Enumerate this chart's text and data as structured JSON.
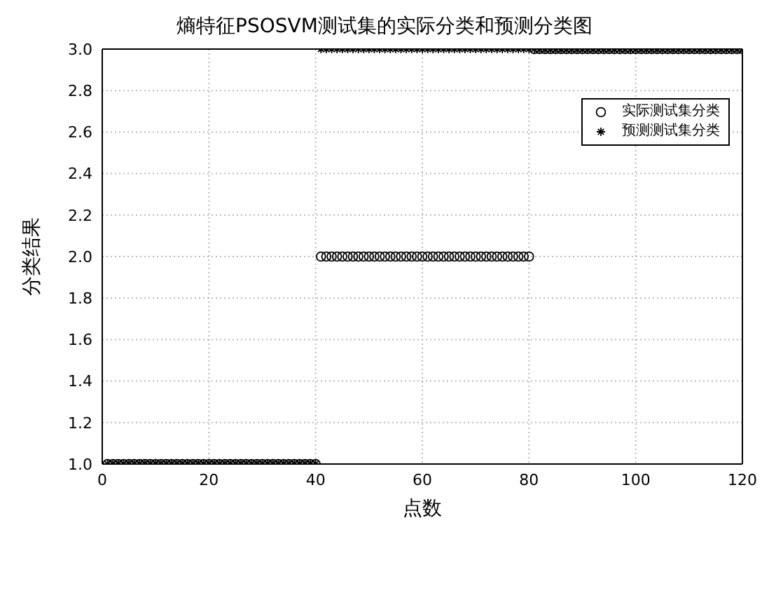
{
  "chart_data": {
    "type": "scatter",
    "title": "熵特征PSOSVM测试集的实际分类和预测分类图",
    "xlabel": "点数",
    "ylabel": "分类结果",
    "x": [
      1,
      2,
      3,
      4,
      5,
      6,
      7,
      8,
      9,
      10,
      11,
      12,
      13,
      14,
      15,
      16,
      17,
      18,
      19,
      20,
      21,
      22,
      23,
      24,
      25,
      26,
      27,
      28,
      29,
      30,
      31,
      32,
      33,
      34,
      35,
      36,
      37,
      38,
      39,
      40,
      41,
      42,
      43,
      44,
      45,
      46,
      47,
      48,
      49,
      50,
      51,
      52,
      53,
      54,
      55,
      56,
      57,
      58,
      59,
      60,
      61,
      62,
      63,
      64,
      65,
      66,
      67,
      68,
      69,
      70,
      71,
      72,
      73,
      74,
      75,
      76,
      77,
      78,
      79,
      80,
      81,
      82,
      83,
      84,
      85,
      86,
      87,
      88,
      89,
      90,
      91,
      92,
      93,
      94,
      95,
      96,
      97,
      98,
      99,
      100,
      101,
      102,
      103,
      104,
      105,
      106,
      107,
      108,
      109,
      110,
      111,
      112,
      113,
      114,
      115,
      116,
      117,
      118,
      119,
      120
    ],
    "series": [
      {
        "name": "实际测试集分类",
        "color": "#000000",
        "marker": "circle",
        "values": [
          1,
          1,
          1,
          1,
          1,
          1,
          1,
          1,
          1,
          1,
          1,
          1,
          1,
          1,
          1,
          1,
          1,
          1,
          1,
          1,
          1,
          1,
          1,
          1,
          1,
          1,
          1,
          1,
          1,
          1,
          1,
          1,
          1,
          1,
          1,
          1,
          1,
          1,
          1,
          1,
          2,
          2,
          2,
          2,
          2,
          2,
          2,
          2,
          2,
          2,
          2,
          2,
          2,
          2,
          2,
          2,
          2,
          2,
          2,
          2,
          2,
          2,
          2,
          2,
          2,
          2,
          2,
          2,
          2,
          2,
          2,
          2,
          2,
          2,
          2,
          2,
          2,
          2,
          2,
          2,
          3,
          3,
          3,
          3,
          3,
          3,
          3,
          3,
          3,
          3,
          3,
          3,
          3,
          3,
          3,
          3,
          3,
          3,
          3,
          3,
          3,
          3,
          3,
          3,
          3,
          3,
          3,
          3,
          3,
          3,
          3,
          3,
          3,
          3,
          3,
          3,
          3,
          3,
          3,
          3
        ]
      },
      {
        "name": "预测测试集分类",
        "color": "#000000",
        "marker": "cross",
        "values": [
          1,
          1,
          1,
          1,
          1,
          1,
          1,
          1,
          1,
          1,
          1,
          1,
          1,
          1,
          1,
          1,
          1,
          1,
          1,
          1,
          1,
          1,
          1,
          1,
          1,
          1,
          1,
          1,
          1,
          1,
          1,
          1,
          1,
          1,
          1,
          1,
          1,
          1,
          1,
          1,
          3,
          3,
          3,
          3,
          3,
          3,
          3,
          3,
          3,
          3,
          3,
          3,
          3,
          3,
          3,
          3,
          3,
          3,
          3,
          3,
          3,
          3,
          3,
          3,
          3,
          3,
          3,
          3,
          3,
          3,
          3,
          3,
          3,
          3,
          3,
          3,
          3,
          3,
          3,
          3,
          3,
          3,
          3,
          3,
          3,
          3,
          3,
          3,
          3,
          3,
          3,
          3,
          3,
          3,
          3,
          3,
          3,
          3,
          3,
          3,
          3,
          3,
          3,
          3,
          3,
          3,
          3,
          3,
          3,
          3,
          3,
          3,
          3,
          3,
          3,
          3,
          3,
          3,
          3,
          3
        ]
      }
    ],
    "xlim": [
      0,
      120
    ],
    "xticks": [
      0,
      20,
      40,
      60,
      80,
      100,
      120
    ],
    "ylim": [
      1,
      3
    ],
    "yticks": [
      {
        "value": 1,
        "label": "1.0"
      },
      {
        "value": 1.2,
        "label": "1.2"
      },
      {
        "value": 1.4,
        "label": "1.4"
      },
      {
        "value": 1.6,
        "label": "1.6"
      },
      {
        "value": 1.8,
        "label": "1.8"
      },
      {
        "value": 2,
        "label": "2.0"
      },
      {
        "value": 2.2,
        "label": "2.2"
      },
      {
        "value": 2.4,
        "label": "2.4"
      },
      {
        "value": 2.6,
        "label": "2.6"
      },
      {
        "value": 2.8,
        "label": "2.8"
      },
      {
        "value": 3,
        "label": "3.0"
      }
    ],
    "grid": true,
    "legend": "top right"
  }
}
